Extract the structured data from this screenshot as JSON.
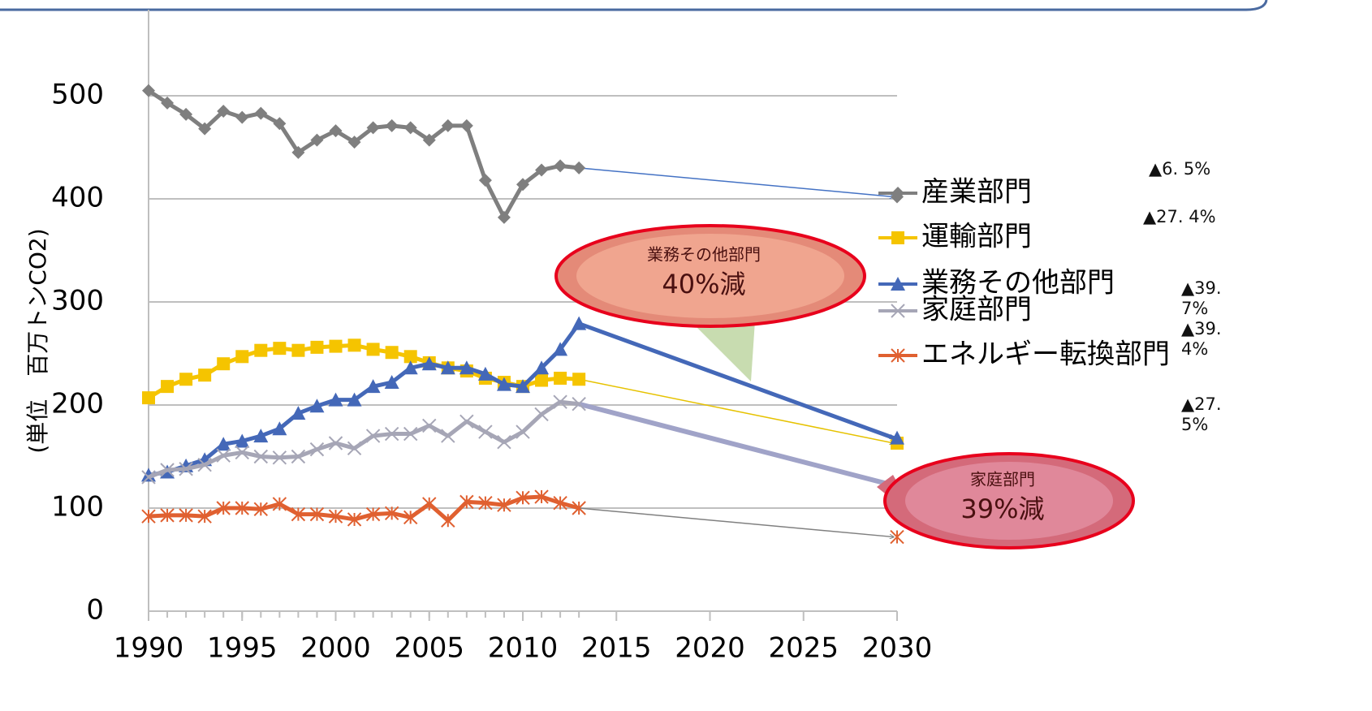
{
  "chart_data": {
    "type": "line",
    "y_label": "(単位　百万トンCO2)",
    "x": [
      1990,
      1991,
      1992,
      1993,
      1994,
      1995,
      1996,
      1997,
      1998,
      1999,
      2000,
      2001,
      2002,
      2003,
      2004,
      2005,
      2006,
      2007,
      2008,
      2009,
      2010,
      2011,
      2012,
      2013,
      2030
    ],
    "xlim": [
      1990,
      2030
    ],
    "xticks": [
      1990,
      1995,
      2000,
      2005,
      2010,
      2015,
      2020,
      2025,
      2030
    ],
    "ylim": [
      0,
      500
    ],
    "yticks": [
      0,
      100,
      200,
      300,
      400,
      500
    ],
    "grid": true,
    "series": [
      {
        "name": "産業部門",
        "color": "#7f7f7f",
        "marker": "diamond",
        "change": "▲6. 5%",
        "values": [
          505,
          493,
          482,
          468,
          485,
          479,
          483,
          473,
          445,
          457,
          466,
          455,
          469,
          471,
          469,
          457,
          471,
          471,
          418,
          382,
          414,
          428,
          432,
          430,
          402
        ]
      },
      {
        "name": "運輸部門",
        "color": "#f5c400",
        "marker": "square",
        "change": "▲27. 4%",
        "values": [
          207,
          218,
          225,
          229,
          240,
          247,
          253,
          255,
          253,
          256,
          257,
          258,
          254,
          251,
          247,
          241,
          236,
          233,
          226,
          222,
          218,
          224,
          226,
          225,
          163
        ]
      },
      {
        "name": "業務その他部門",
        "color": "#4468b8",
        "marker": "triangle",
        "change": "▲39. 7%",
        "values": [
          132,
          135,
          141,
          147,
          162,
          165,
          170,
          177,
          192,
          199,
          205,
          205,
          218,
          222,
          236,
          240,
          236,
          236,
          230,
          220,
          218,
          236,
          254,
          279,
          168
        ]
      },
      {
        "name": "家庭部門",
        "color": "#a6a6b6",
        "marker": "x",
        "change": "▲39. 4%",
        "values": [
          130,
          137,
          138,
          142,
          151,
          154,
          150,
          149,
          150,
          157,
          163,
          158,
          170,
          172,
          172,
          180,
          170,
          184,
          174,
          164,
          174,
          191,
          203,
          201,
          122
        ]
      },
      {
        "name": "エネルギー転換部門",
        "color": "#e06030",
        "marker": "star",
        "change": "▲27. 5%",
        "values": [
          92,
          93,
          93,
          92,
          100,
          100,
          99,
          104,
          94,
          94,
          92,
          89,
          94,
          95,
          91,
          104,
          88,
          106,
          105,
          103,
          110,
          111,
          105,
          100,
          72
        ]
      }
    ],
    "callouts": [
      {
        "title": "業務その他部門",
        "text": "40%減"
      },
      {
        "title": "家庭部門",
        "text": "39%減"
      }
    ]
  }
}
